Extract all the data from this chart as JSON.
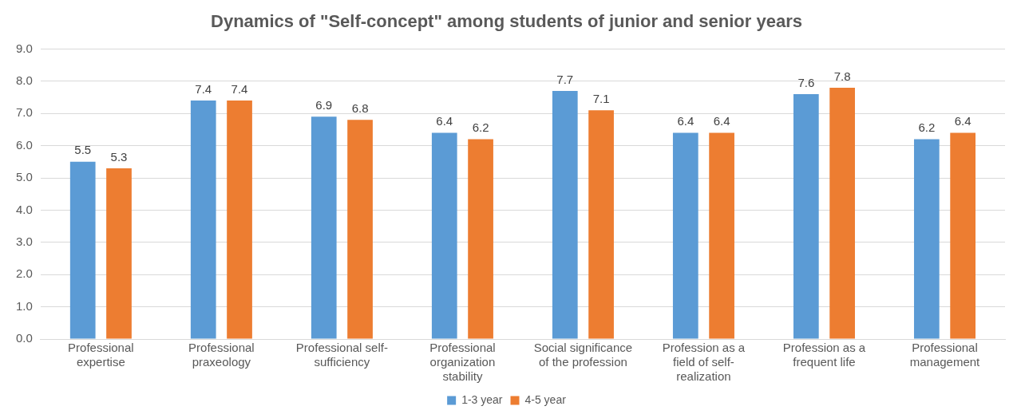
{
  "chart_data": {
    "type": "bar",
    "title": "Dynamics of \"Self-concept\" among students of junior and senior years",
    "categories": [
      "Professional expertise",
      "Professional praxeology",
      "Professional self-sufficiency",
      "Professional organization stability",
      "Social significance of the profession",
      "Profession as a field of self-realization",
      "Profession as a frequent life",
      "Professional management"
    ],
    "series": [
      {
        "name": "1-3 year",
        "color": "#5b9bd5",
        "values": [
          5.5,
          7.4,
          6.9,
          6.4,
          7.7,
          6.4,
          7.6,
          6.2
        ]
      },
      {
        "name": "4-5 year",
        "color": "#ed7d31",
        "values": [
          5.3,
          7.4,
          6.8,
          6.2,
          7.1,
          6.4,
          7.8,
          6.4
        ]
      }
    ],
    "ylim": [
      0,
      9
    ],
    "yticks": [
      {
        "value": 0,
        "label": "0.0"
      },
      {
        "value": 1,
        "label": "1.0"
      },
      {
        "value": 2,
        "label": "2.0"
      },
      {
        "value": 3,
        "label": "3.0"
      },
      {
        "value": 4,
        "label": "4.0"
      },
      {
        "value": 5,
        "label": "5.0"
      },
      {
        "value": 6,
        "label": "6.0"
      },
      {
        "value": 7,
        "label": "7.0"
      },
      {
        "value": 8,
        "label": "8.0"
      },
      {
        "value": 9,
        "label": "9.0"
      }
    ],
    "grid": "y",
    "legend": "bottom",
    "data_labels": true
  }
}
